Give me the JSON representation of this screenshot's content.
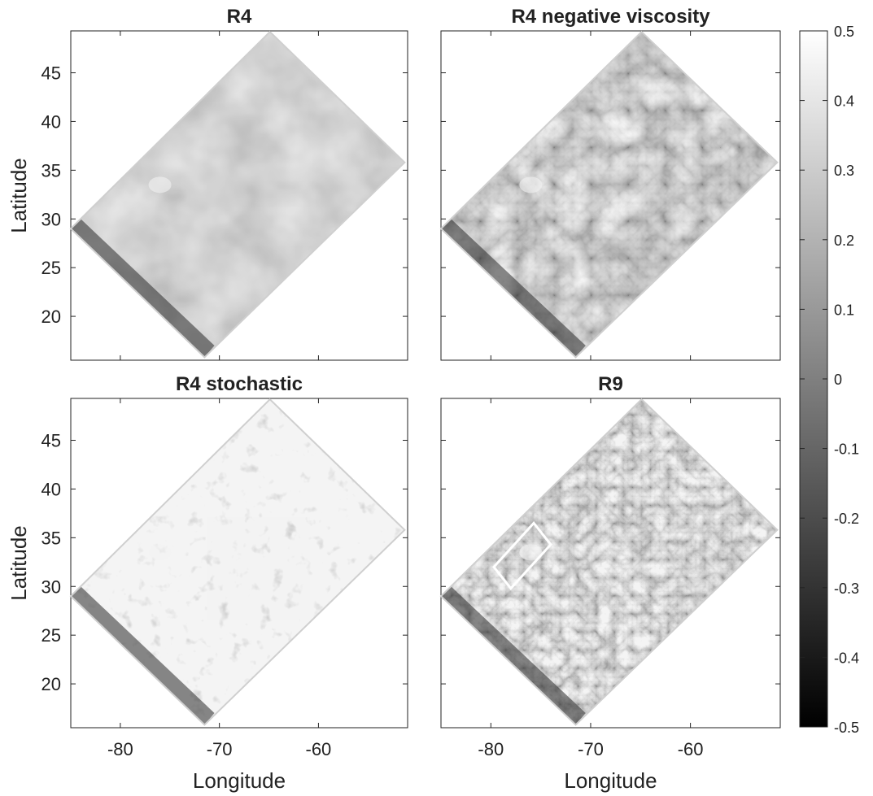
{
  "chart_data": [
    {
      "type": "heatmap",
      "title": "R4",
      "xlabel": "",
      "ylabel": "Latitude",
      "xlim": [
        -85,
        -51
      ],
      "ylim": [
        15.5,
        49.3
      ],
      "yticks": [
        20,
        25,
        30,
        35,
        40,
        45
      ],
      "xticks": [],
      "grid": false
    },
    {
      "type": "heatmap",
      "title": "R4 negative viscosity",
      "xlabel": "",
      "ylabel": "",
      "xlim": [
        -85,
        -51
      ],
      "ylim": [
        15.5,
        49.3
      ],
      "yticks": [],
      "xticks": [],
      "grid": false
    },
    {
      "type": "heatmap",
      "title": "R4 stochastic",
      "xlabel": "Longitude",
      "ylabel": "Latitude",
      "xlim": [
        -85,
        -51
      ],
      "ylim": [
        15.5,
        49.3
      ],
      "yticks": [
        20,
        25,
        30,
        35,
        40,
        45
      ],
      "xticks": [
        -80,
        -70,
        -60
      ],
      "grid": false
    },
    {
      "type": "heatmap",
      "title": "R9",
      "xlabel": "Longitude",
      "ylabel": "",
      "xlim": [
        -85,
        -51
      ],
      "ylim": [
        15.5,
        49.3
      ],
      "yticks": [],
      "xticks": [
        -80,
        -70,
        -60
      ],
      "grid": false,
      "annotation": {
        "shape": "rotated-box",
        "corners": [
          [
            -79.7,
            32.0
          ],
          [
            -78.0,
            29.8
          ],
          [
            -74.0,
            34.3
          ],
          [
            -75.7,
            36.5
          ]
        ]
      }
    }
  ],
  "domain_polygon": [
    [
      -85,
      29
    ],
    [
      -71.5,
      15.8
    ],
    [
      -51.3,
      35.8
    ],
    [
      -64.9,
      49.2
    ]
  ],
  "colorbar": {
    "colormap": "gray",
    "range": [
      -0.5,
      0.5
    ],
    "ticks": [
      "0.5",
      "0.4",
      "0.3",
      "0.2",
      "0.1",
      "0",
      "-0.1",
      "-0.2",
      "-0.3",
      "-0.4",
      "-0.5"
    ],
    "placement": "right"
  }
}
